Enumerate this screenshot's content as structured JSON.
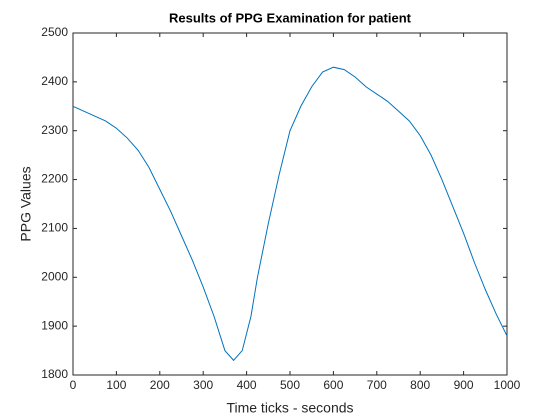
{
  "chart_data": {
    "type": "line",
    "title": "Results of PPG Examination for patient",
    "x_label": "Time ticks - seconds",
    "y_label": "PPG Values",
    "x": [
      0,
      25,
      50,
      75,
      100,
      125,
      150,
      175,
      200,
      225,
      250,
      275,
      300,
      325,
      350,
      370,
      390,
      410,
      425,
      450,
      475,
      500,
      525,
      550,
      575,
      600,
      625,
      650,
      675,
      700,
      725,
      750,
      775,
      800,
      825,
      850,
      875,
      900,
      925,
      950,
      975,
      1000
    ],
    "series": [
      {
        "color": "#0072bd",
        "values": [
          2350,
          2340,
          2330,
          2320,
          2305,
          2285,
          2260,
          2225,
          2180,
          2135,
          2085,
          2035,
          1980,
          1920,
          1850,
          1830,
          1850,
          1920,
          2000,
          2110,
          2210,
          2300,
          2350,
          2390,
          2420,
          2430,
          2425,
          2410,
          2390,
          2375,
          2360,
          2340,
          2320,
          2290,
          2250,
          2200,
          2145,
          2090,
          2030,
          1975,
          1925,
          1880
        ]
      }
    ],
    "xlim": [
      0,
      1000
    ],
    "xticks": [
      0,
      100,
      200,
      300,
      400,
      500,
      600,
      700,
      800,
      900,
      1000
    ],
    "ylim": [
      1800,
      2500
    ],
    "yticks": [
      1800,
      1900,
      2000,
      2100,
      2200,
      2300,
      2400,
      2500
    ],
    "grid": false
  }
}
